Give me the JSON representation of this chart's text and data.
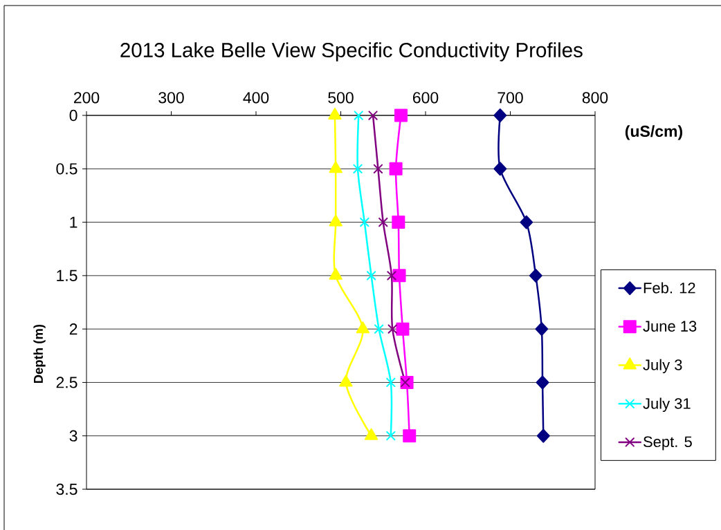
{
  "chart_data": {
    "type": "line",
    "title": "2013 Lake Belle View Specific Conductivity Profiles",
    "xlabel": "(uS/cm)",
    "ylabel": "Depth (m)",
    "xlim": [
      200,
      800
    ],
    "xticks": [
      200,
      300,
      400,
      500,
      600,
      700,
      800
    ],
    "ylim": [
      3.5,
      0
    ],
    "yticks": [
      0,
      0.5,
      1,
      1.5,
      2,
      2.5,
      3,
      3.5
    ],
    "grid": "y",
    "legend": "right",
    "line_style": "solid",
    "series": [
      {
        "name": "Feb. 12",
        "color": "#000080",
        "marker": "diamond",
        "x": [
          688,
          688,
          719,
          730,
          737,
          738,
          739
        ],
        "values": [
          0,
          0.5,
          1,
          1.5,
          2,
          2.5,
          3
        ]
      },
      {
        "name": "June 13",
        "color": "#ff00ff",
        "marker": "square",
        "x": [
          571,
          565,
          568,
          569,
          573,
          578,
          581
        ],
        "values": [
          0,
          0.5,
          1,
          1.5,
          2,
          2.5,
          3
        ]
      },
      {
        "name": "July 3",
        "color": "#ffff00",
        "marker": "triangle",
        "x": [
          493,
          494,
          494,
          494,
          526,
          506,
          536
        ],
        "values": [
          0,
          0.5,
          1,
          1.5,
          2,
          2.5,
          3
        ]
      },
      {
        "name": "July 31",
        "color": "#00ffff",
        "marker": "cross",
        "x": [
          521,
          520,
          528,
          536,
          545,
          559,
          559
        ],
        "values": [
          0,
          0.5,
          1,
          1.5,
          2,
          2.5,
          3
        ]
      },
      {
        "name": "Sept. 5",
        "color": "#800080",
        "marker": "cross",
        "x": [
          538,
          544,
          550,
          560,
          561,
          576
        ],
        "values": [
          0,
          0.5,
          1,
          1.5,
          2,
          2.5
        ]
      }
    ]
  }
}
